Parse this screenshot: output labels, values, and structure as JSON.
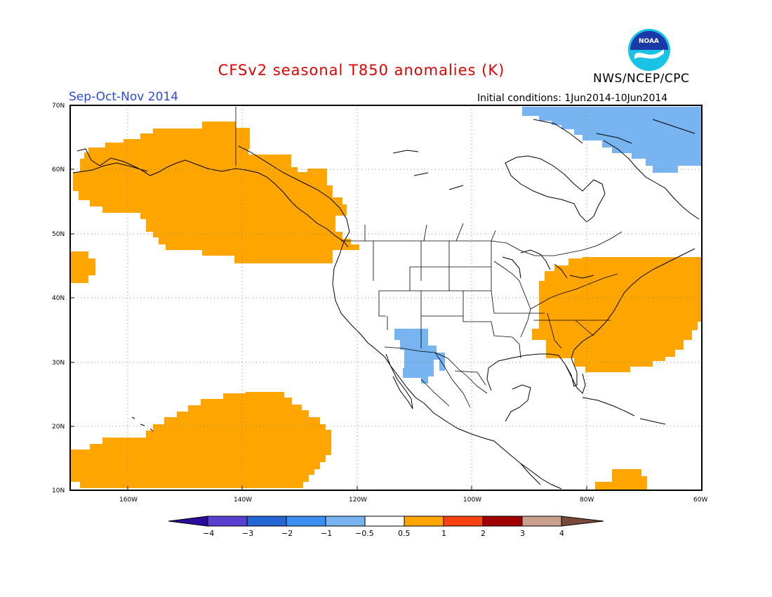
{
  "header": {
    "title": "CFSv2 seasonal T850 anomalies (K)",
    "agency": "NWS/NCEP/CPC",
    "season": "Sep-Oct-Nov 2014",
    "initial_conditions": "Initial conditions: 1Jun2014-10Jun2014",
    "logo_text": "NOAA"
  },
  "map": {
    "lat_labels": [
      "70N",
      "60N",
      "50N",
      "40N",
      "30N",
      "20N",
      "10N"
    ],
    "lon_labels": [
      "160W",
      "140W",
      "120W",
      "100W",
      "80W",
      "60W"
    ],
    "colors": {
      "warm_0_5_1": "#ffa500",
      "cool_m1_m0_5": "#78b4f0",
      "land_outline": "#000000",
      "grid": "#888888"
    }
  },
  "colorbar": {
    "labels": [
      "−4",
      "−3",
      "−2",
      "−1",
      "−0.5",
      "0.5",
      "1",
      "2",
      "3",
      "4"
    ],
    "colors": [
      "#2b0b9c",
      "#5a3fd0",
      "#2466d4",
      "#3c8ff0",
      "#78b4f0",
      "#ffffff",
      "#ffa500",
      "#ff4010",
      "#a00000",
      "#c8a08c",
      "#7a4838"
    ]
  }
}
